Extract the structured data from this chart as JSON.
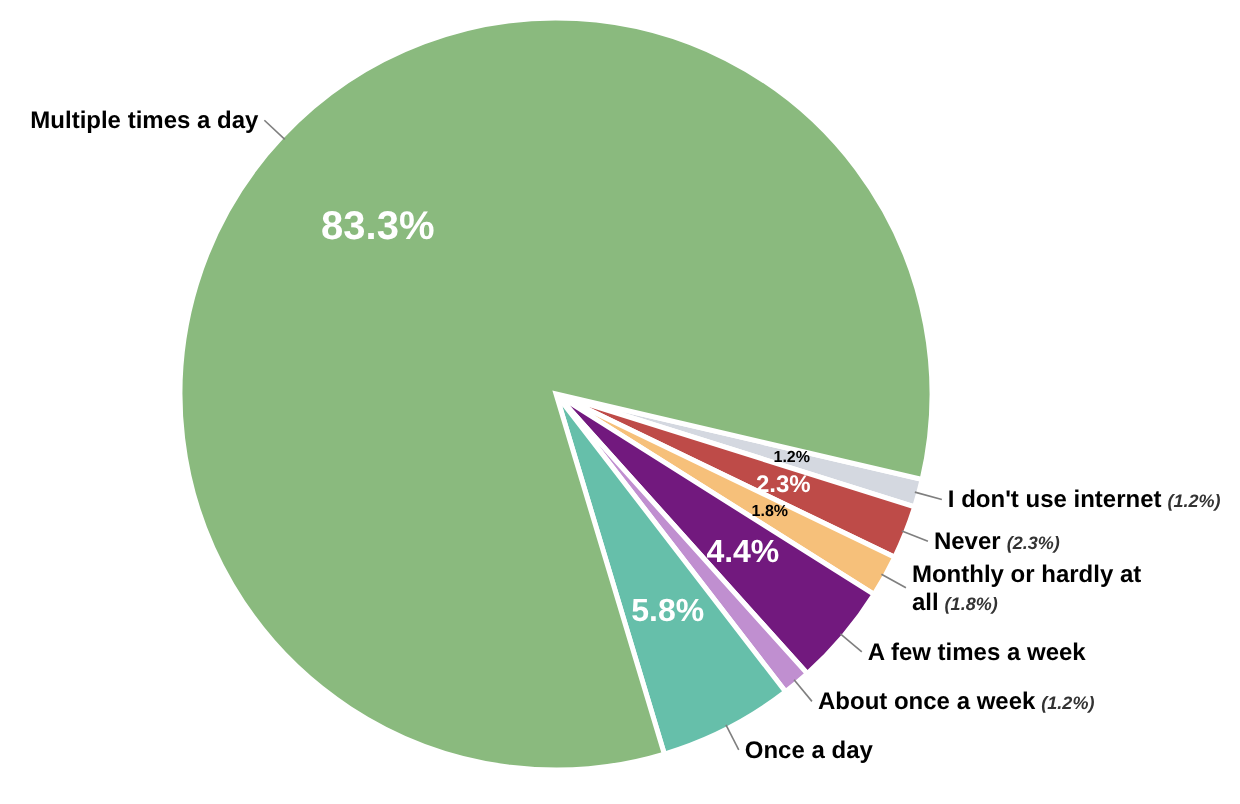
{
  "chart_data": {
    "type": "pie",
    "categories": [
      "I don't use internet",
      "Never",
      "Monthly or hardly at all",
      "A few times a week",
      "About once a week",
      "Once a day",
      "Multiple times a day"
    ],
    "values": [
      1.2,
      2.3,
      1.8,
      4.4,
      1.2,
      5.8,
      83.3
    ],
    "colors": [
      "#d4d8e0",
      "#be4b48",
      "#f6c07a",
      "#72197e",
      "#c08fd0",
      "#66bfaa",
      "#8aba7e"
    ],
    "value_labels": [
      "1.2%",
      "2.3%",
      "1.8%",
      "4.4%",
      null,
      "5.8%",
      "83.3%"
    ],
    "annotations": [
      {
        "text": "(1.2%)",
        "x": "I don't use internet"
      },
      {
        "text": "(2.3%)",
        "x": "Never"
      },
      {
        "text": "(1.8%)",
        "x": "Monthly or hardly at all"
      },
      {
        "text": "(1.2%)",
        "x": "About once a week"
      }
    ]
  }
}
